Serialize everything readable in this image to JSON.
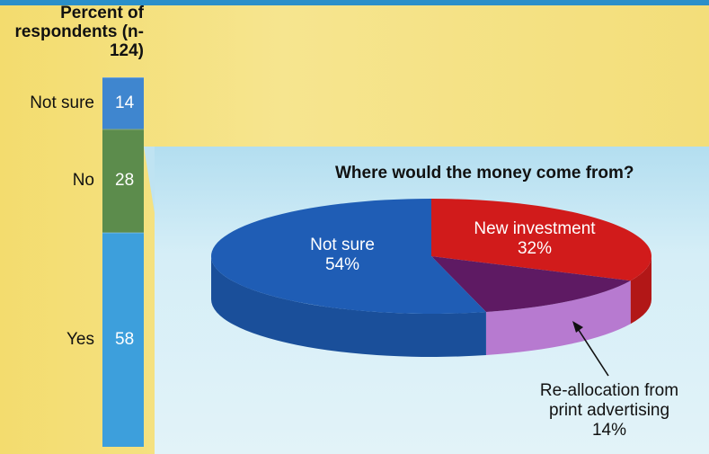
{
  "chart_data": [
    {
      "type": "bar",
      "subtype": "stacked-column",
      "title": "Percent of respondents (n-124)",
      "categories": [
        "Yes",
        "No",
        "Not sure"
      ],
      "values": [
        58,
        28,
        14
      ],
      "colors": [
        "#3d9fdc",
        "#5c8c4c",
        "#3f86cf"
      ]
    },
    {
      "type": "pie",
      "title": "Where would the money come from?",
      "labels": [
        "Not sure",
        "New investment",
        "Re-allocation from print advertising"
      ],
      "values": [
        54,
        32,
        14
      ],
      "value_labels": [
        "54%",
        "32%",
        "14%"
      ],
      "colors": [
        "#1f5db5",
        "#d11b1b",
        "#8b3c9c"
      ]
    }
  ]
}
